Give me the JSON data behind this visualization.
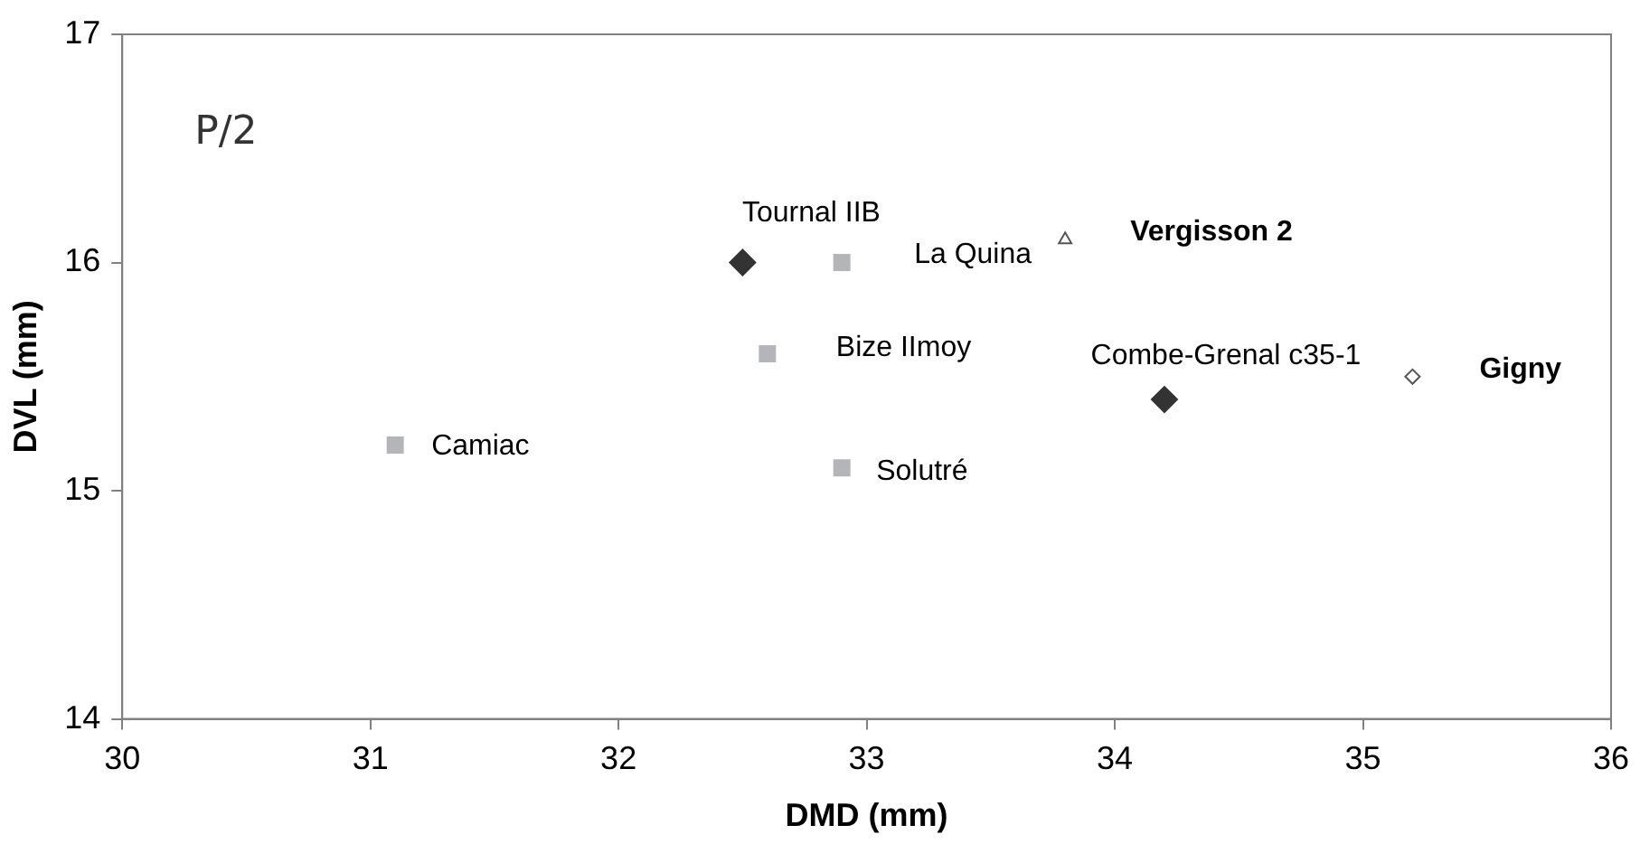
{
  "chart_data": {
    "type": "scatter",
    "xlabel": "DMD (mm)",
    "ylabel": "DVL (mm)",
    "xlim": [
      30,
      36
    ],
    "xticks": [
      30,
      31,
      32,
      33,
      34,
      35,
      36
    ],
    "ylim": [
      14,
      17
    ],
    "yticks": [
      14,
      15,
      16,
      17
    ],
    "grid": false,
    "legend": false,
    "series": [
      {
        "color": "#333333",
        "marker": "diamond",
        "x": [
          32.5,
          34.2
        ],
        "values": [
          16.0,
          15.4
        ]
      },
      {
        "color": "#b4b5b9",
        "marker": "square",
        "x": [
          32.9,
          32.6,
          31.1,
          32.9
        ],
        "values": [
          16.0,
          15.6,
          15.2,
          15.1
        ]
      },
      {
        "color": "#555555",
        "marker": "triangle",
        "x": [
          33.8
        ],
        "values": [
          16.1
        ]
      },
      {
        "color": "#555555",
        "marker": "diamond",
        "x": [
          35.2
        ],
        "values": [
          15.5
        ]
      }
    ],
    "annotations": [
      "P/2",
      {
        "text": "Tournal IIB",
        "x": 32.5,
        "y": 16.0
      },
      {
        "text": "La Quina",
        "x": 32.9,
        "y": 16.0
      },
      {
        "text": "Vergisson 2",
        "x": 33.8,
        "y": 16.1
      },
      {
        "text": "Bize IImoy",
        "x": 32.6,
        "y": 15.6
      },
      {
        "text": "Combe-Grenal c35-1",
        "x": 34.2,
        "y": 15.4
      },
      {
        "text": "Gigny",
        "x": 35.2,
        "y": 15.5
      },
      {
        "text": "Camiac",
        "x": 31.1,
        "y": 15.2
      },
      {
        "text": "Solutré",
        "x": 32.9,
        "y": 15.1
      }
    ]
  }
}
